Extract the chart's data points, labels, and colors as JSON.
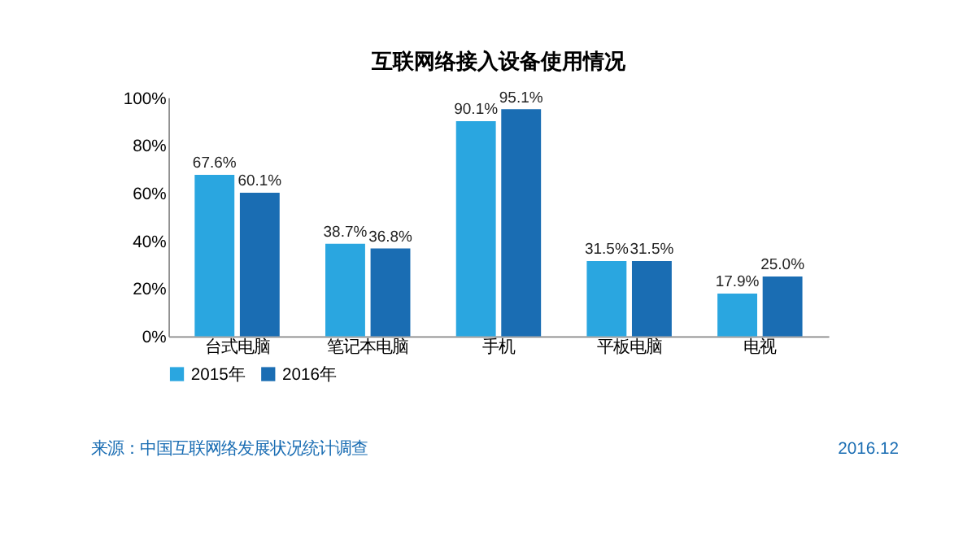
{
  "chart_data": {
    "type": "bar",
    "title": "互联网络接入设备使用情况",
    "categories": [
      "台式电脑",
      "笔记本电脑",
      "手机",
      "平板电脑",
      "电视"
    ],
    "series": [
      {
        "name": "2015年",
        "color": "#2aa6e0",
        "values": [
          67.6,
          38.7,
          90.1,
          31.5,
          17.9
        ]
      },
      {
        "name": "2016年",
        "color": "#1a6db3",
        "values": [
          60.1,
          36.8,
          95.1,
          31.5,
          25.0
        ]
      }
    ],
    "value_labels": [
      [
        "67.6%",
        "38.7%",
        "90.1%",
        "31.5%",
        "17.9%"
      ],
      [
        "60.1%",
        "36.8%",
        "95.1%",
        "31.5%",
        "25.0%"
      ]
    ],
    "ylim": [
      0,
      100
    ],
    "yticks": [
      {
        "value": 0,
        "label": "0%"
      },
      {
        "value": 20,
        "label": "20%"
      },
      {
        "value": 40,
        "label": "40%"
      },
      {
        "value": 60,
        "label": "60%"
      },
      {
        "value": 80,
        "label": "80%"
      },
      {
        "value": 100,
        "label": "100%"
      }
    ],
    "grid": false,
    "legend": "bottom",
    "annotations": [
      "来源：中国互联网络发展状况统计调查",
      "2016.12"
    ]
  }
}
